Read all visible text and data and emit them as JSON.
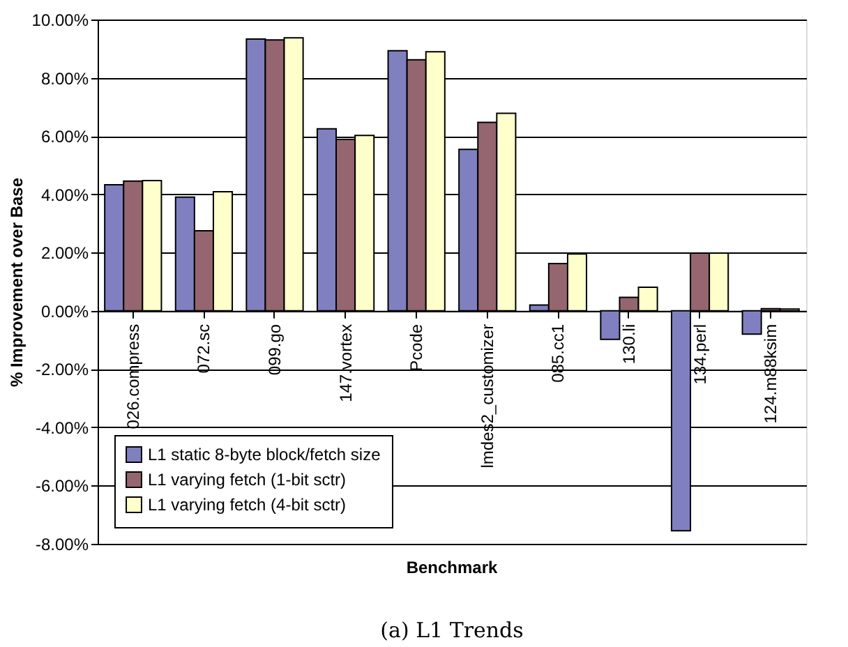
{
  "chart_data": {
    "type": "bar",
    "xlabel": "Benchmark",
    "ylabel": "% Improvement over Base",
    "annotations": [
      "(a) L1 Trends"
    ],
    "categories": [
      "026.compress",
      "072.sc",
      "099.go",
      "147.vortex",
      "Pcode",
      "lmdes2_customizer",
      "085.cc1",
      "130.li",
      "134.perl",
      "124.m88ksim"
    ],
    "series": [
      {
        "name": "L1 static 8-byte block/fetch size",
        "color": "#8080c0",
        "values": [
          4.33,
          3.9,
          9.33,
          6.25,
          8.93,
          5.54,
          0.2,
          -0.98,
          -7.55,
          -0.8
        ]
      },
      {
        "name": "L1 varying fetch (1-bit sctr)",
        "color": "#956670",
        "values": [
          4.45,
          2.75,
          9.3,
          5.88,
          8.62,
          6.47,
          1.62,
          0.46,
          1.98,
          0.07
        ]
      },
      {
        "name": "L1 varying fetch (4-bit sctr)",
        "color": "#ffffcc",
        "values": [
          4.47,
          4.09,
          9.37,
          6.02,
          8.89,
          6.78,
          1.95,
          0.81,
          1.98,
          0.06
        ]
      }
    ],
    "ylim": [
      -8,
      10
    ],
    "yticks": [
      {
        "value": -8,
        "label": "-8.00%"
      },
      {
        "value": -6,
        "label": "-6.00%"
      },
      {
        "value": -4,
        "label": "-4.00%"
      },
      {
        "value": -2,
        "label": "-2.00%"
      },
      {
        "value": 0,
        "label": "0.00%"
      },
      {
        "value": 2,
        "label": "2.00%"
      },
      {
        "value": 4,
        "label": "4.00%"
      },
      {
        "value": 6,
        "label": "6.00%"
      },
      {
        "value": 8,
        "label": "8.00%"
      },
      {
        "value": 10,
        "label": "10.00%"
      }
    ],
    "grid": "y",
    "legend": "bottom left"
  }
}
